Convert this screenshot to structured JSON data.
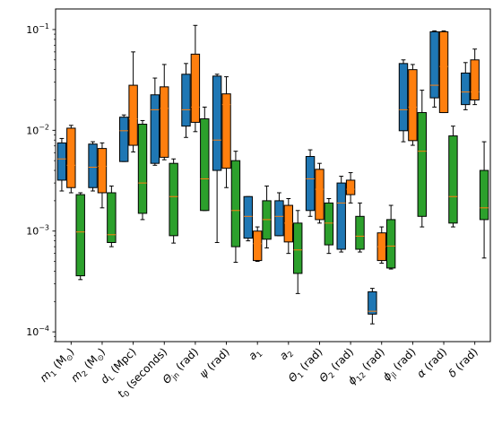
{
  "chart_data": {
    "type": "box",
    "title": "",
    "xlabel": "",
    "ylabel": "",
    "yscale": "log",
    "ylim": [
      8e-05,
      0.16
    ],
    "yticks": [
      0.0001,
      0.001,
      0.01,
      0.1
    ],
    "ytick_labels": [
      {
        "base": "10",
        "exp": "−4"
      },
      {
        "base": "10",
        "exp": "−3"
      },
      {
        "base": "10",
        "exp": "−2"
      },
      {
        "base": "10",
        "exp": "−1"
      }
    ],
    "grid": false,
    "legend": "none",
    "series_colors": [
      "#1f77b4",
      "#ff7f0e",
      "#2ca02c"
    ],
    "median_color": "#ff7f0e",
    "categories": [
      {
        "main": "m",
        "sub": "1",
        "rest": " (M",
        "rsub": "⊙",
        "tail": ")"
      },
      {
        "main": "m",
        "sub": "2",
        "rest": " (M",
        "rsub": "⊙",
        "tail": ")"
      },
      {
        "main": "d",
        "sub": "L",
        "rest": " (Mpc)",
        "rsub": "",
        "tail": ""
      },
      {
        "main": "t",
        "sub": "0",
        "rest": " (seconds)",
        "rsub": "",
        "tail": ""
      },
      {
        "main": "Θ",
        "sub": "jn",
        "rest": " (rad)",
        "rsub": "",
        "tail": ""
      },
      {
        "main": "ψ",
        "sub": "",
        "rest": " (rad)",
        "rsub": "",
        "tail": ""
      },
      {
        "main": "a",
        "sub": "1",
        "rest": "",
        "rsub": "",
        "tail": ""
      },
      {
        "main": "a",
        "sub": "2",
        "rest": "",
        "rsub": "",
        "tail": ""
      },
      {
        "main": "Θ",
        "sub": "1",
        "rest": " (rad)",
        "rsub": "",
        "tail": ""
      },
      {
        "main": "Θ",
        "sub": "2",
        "rest": " (rad)",
        "rsub": "",
        "tail": ""
      },
      {
        "main": "ϕ",
        "sub": "12",
        "rest": " (rad)",
        "rsub": "",
        "tail": ""
      },
      {
        "main": "ϕ",
        "sub": "jl",
        "rest": " (rad)",
        "rsub": "",
        "tail": ""
      },
      {
        "main": "α",
        "sub": "",
        "rest": " (rad)",
        "rsub": "",
        "tail": ""
      },
      {
        "main": "δ",
        "sub": "",
        "rest": " (rad)",
        "rsub": "",
        "tail": ""
      }
    ],
    "boxes": [
      [
        {
          "whislo": 0.0025,
          "q1": 0.0032,
          "med": 0.0052,
          "q3": 0.0075,
          "whishi": 0.0083
        },
        {
          "whislo": 0.0024,
          "q1": 0.0027,
          "med": 0.0045,
          "q3": 0.0105,
          "whishi": 0.0112
        },
        {
          "whislo": 0.00033,
          "q1": 0.00036,
          "med": 0.00098,
          "q3": 0.0023,
          "whishi": 0.0024
        }
      ],
      [
        {
          "whislo": 0.0025,
          "q1": 0.0027,
          "med": 0.0043,
          "q3": 0.0073,
          "whishi": 0.0077
        },
        {
          "whislo": 0.0017,
          "q1": 0.0024,
          "med": 0.0044,
          "q3": 0.0066,
          "whishi": 0.0075
        },
        {
          "whislo": 0.0007,
          "q1": 0.00077,
          "med": 0.00092,
          "q3": 0.0024,
          "whishi": 0.0028
        }
      ],
      [
        {
          "whislo": 0.0049,
          "q1": 0.0049,
          "med": 0.0099,
          "q3": 0.0135,
          "whishi": 0.0142
        },
        {
          "whislo": 0.0061,
          "q1": 0.0071,
          "med": 0.013,
          "q3": 0.028,
          "whishi": 0.06
        },
        {
          "whislo": 0.0013,
          "q1": 0.0015,
          "med": 0.003,
          "q3": 0.0115,
          "whishi": 0.0125
        }
      ],
      [
        {
          "whislo": 0.0045,
          "q1": 0.0047,
          "med": 0.016,
          "q3": 0.0225,
          "whishi": 0.033
        },
        {
          "whislo": 0.0051,
          "q1": 0.0054,
          "med": 0.0165,
          "q3": 0.027,
          "whishi": 0.045
        },
        {
          "whislo": 0.00076,
          "q1": 0.0009,
          "med": 0.0022,
          "q3": 0.0047,
          "whishi": 0.0052
        }
      ],
      [
        {
          "whislo": 0.0085,
          "q1": 0.011,
          "med": 0.016,
          "q3": 0.036,
          "whishi": 0.046
        },
        {
          "whislo": 0.0097,
          "q1": 0.012,
          "med": 0.017,
          "q3": 0.057,
          "whishi": 0.11
        },
        {
          "whislo": 0.0016,
          "q1": 0.0016,
          "med": 0.0033,
          "q3": 0.013,
          "whishi": 0.017
        }
      ],
      [
        {
          "whislo": 0.00077,
          "q1": 0.004,
          "med": 0.008,
          "q3": 0.0345,
          "whishi": 0.036
        },
        {
          "whislo": 0.0027,
          "q1": 0.0042,
          "med": 0.018,
          "q3": 0.023,
          "whishi": 0.034
        },
        {
          "whislo": 0.00049,
          "q1": 0.0007,
          "med": 0.0016,
          "q3": 0.005,
          "whishi": 0.0062
        }
      ],
      [
        {
          "whislo": 0.0008,
          "q1": 0.00085,
          "med": 0.0014,
          "q3": 0.0022,
          "whishi": 0.0022
        },
        {
          "whislo": 0.0005,
          "q1": 0.00051,
          "med": 0.00075,
          "q3": 0.001,
          "whishi": 0.0011
        },
        {
          "whislo": 0.00068,
          "q1": 0.00083,
          "med": 0.0013,
          "q3": 0.002,
          "whishi": 0.0028
        }
      ],
      [
        {
          "whislo": 0.0009,
          "q1": 0.0009,
          "med": 0.0014,
          "q3": 0.002,
          "whishi": 0.0024
        },
        {
          "whislo": 0.0006,
          "q1": 0.00078,
          "med": 0.0012,
          "q3": 0.0018,
          "whishi": 0.0021
        },
        {
          "whislo": 0.00024,
          "q1": 0.00038,
          "med": 0.00065,
          "q3": 0.0012,
          "whishi": 0.0016
        }
      ],
      [
        {
          "whislo": 0.0014,
          "q1": 0.0016,
          "med": 0.0033,
          "q3": 0.0055,
          "whishi": 0.0064
        },
        {
          "whislo": 0.0012,
          "q1": 0.0013,
          "med": 0.0026,
          "q3": 0.0041,
          "whishi": 0.0047
        },
        {
          "whislo": 0.0006,
          "q1": 0.00073,
          "med": 0.0012,
          "q3": 0.0019,
          "whishi": 0.0021
        }
      ],
      [
        {
          "whislo": 0.00062,
          "q1": 0.00066,
          "med": 0.0019,
          "q3": 0.003,
          "whishi": 0.0035
        },
        {
          "whislo": 0.0019,
          "q1": 0.0023,
          "med": 0.0026,
          "q3": 0.0032,
          "whishi": 0.0038
        },
        {
          "whislo": 0.00062,
          "q1": 0.00066,
          "med": 0.00089,
          "q3": 0.0014,
          "whishi": 0.0019
        }
      ],
      [
        {
          "whislo": 0.00012,
          "q1": 0.00015,
          "med": 0.00016,
          "q3": 0.00025,
          "whishi": 0.00027
        },
        {
          "whislo": 0.00048,
          "q1": 0.00051,
          "med": 0.0007,
          "q3": 0.00096,
          "whishi": 0.0011
        },
        {
          "whislo": 0.00042,
          "q1": 0.00043,
          "med": 0.00071,
          "q3": 0.0013,
          "whishi": 0.0018
        }
      ],
      [
        {
          "whislo": 0.0077,
          "q1": 0.0099,
          "med": 0.016,
          "q3": 0.046,
          "whishi": 0.05
        },
        {
          "whislo": 0.0071,
          "q1": 0.0079,
          "med": 0.017,
          "q3": 0.04,
          "whishi": 0.045
        },
        {
          "whislo": 0.0011,
          "q1": 0.0014,
          "med": 0.0062,
          "q3": 0.015,
          "whishi": 0.025
        }
      ],
      [
        {
          "whislo": 0.017,
          "q1": 0.021,
          "med": 0.028,
          "q3": 0.095,
          "whishi": 0.097
        },
        {
          "whislo": 0.015,
          "q1": 0.015,
          "med": 0.043,
          "q3": 0.095,
          "whishi": 0.097
        },
        {
          "whislo": 0.0011,
          "q1": 0.0012,
          "med": 0.0022,
          "q3": 0.0088,
          "whishi": 0.011
        }
      ],
      [
        {
          "whislo": 0.016,
          "q1": 0.018,
          "med": 0.024,
          "q3": 0.037,
          "whishi": 0.047
        },
        {
          "whislo": 0.018,
          "q1": 0.02,
          "med": 0.024,
          "q3": 0.05,
          "whishi": 0.064
        },
        {
          "whislo": 0.00054,
          "q1": 0.0013,
          "med": 0.0017,
          "q3": 0.004,
          "whishi": 0.0077
        }
      ]
    ]
  }
}
